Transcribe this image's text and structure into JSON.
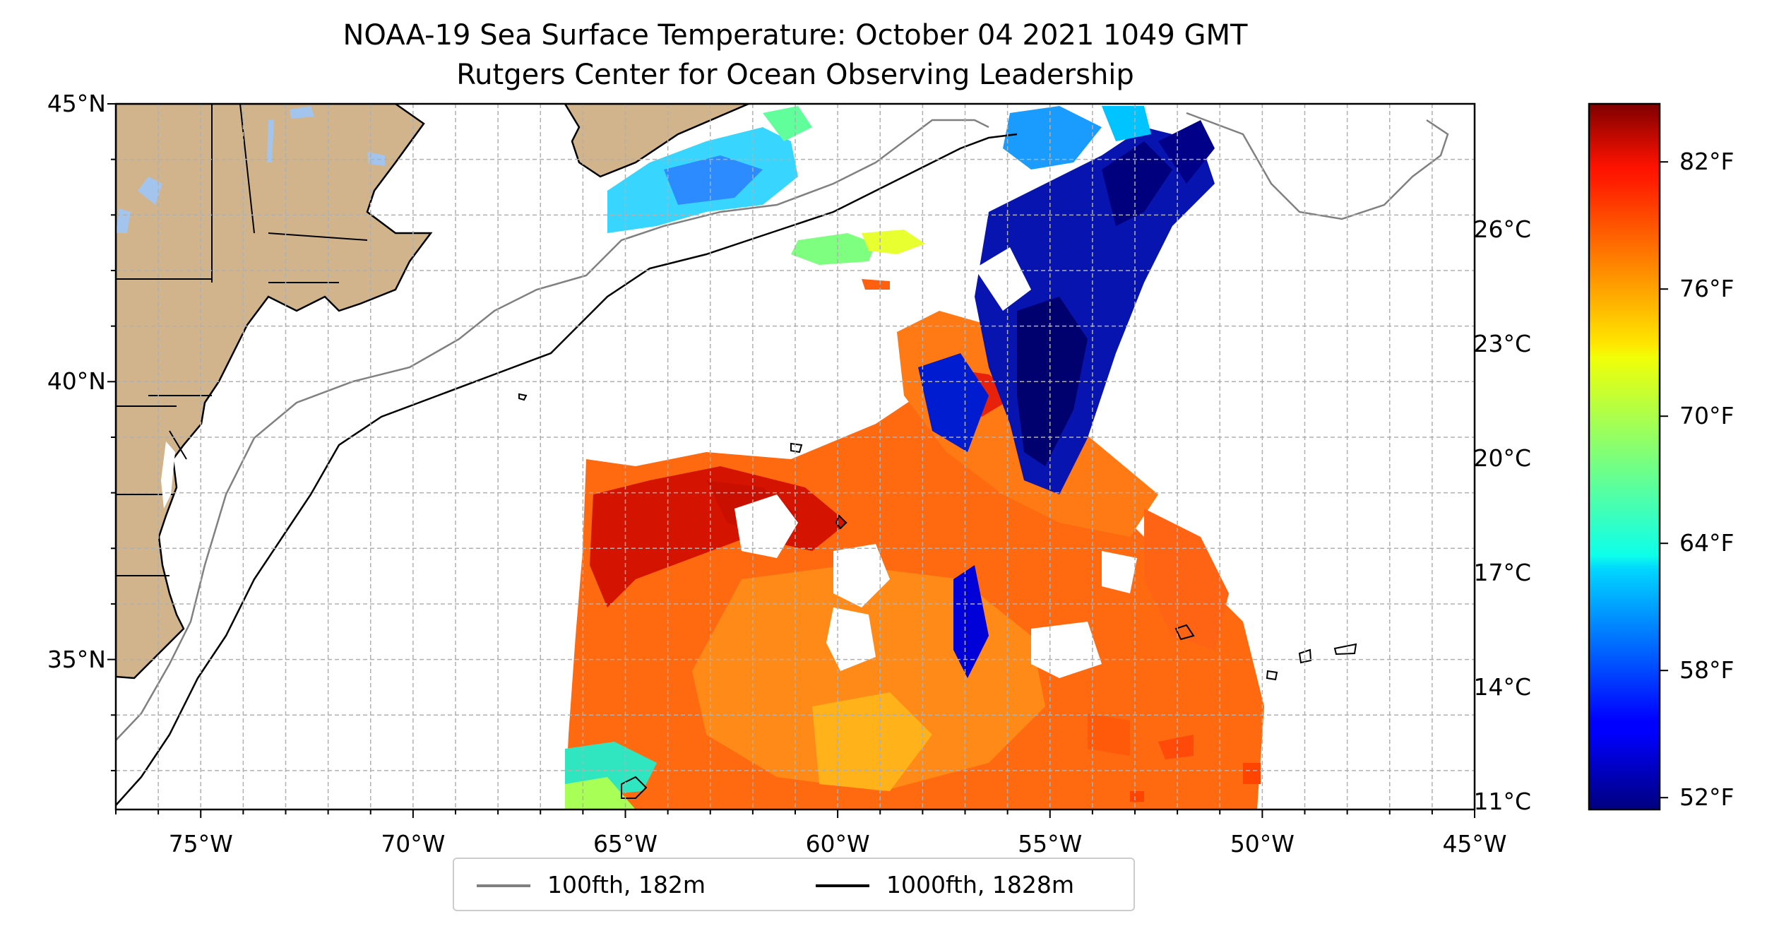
{
  "title": "NOAA-19 Sea Surface Temperature: October 04 2021 1049 GMT",
  "subtitle": "Rutgers Center for Ocean Observing Leadership",
  "map": {
    "lon_range": [
      -77,
      -45
    ],
    "lat_range": [
      32.3,
      45
    ],
    "lat_ticks": [
      {
        "value": 45,
        "label": "45°N"
      },
      {
        "value": 40,
        "label": "40°N"
      },
      {
        "value": 35,
        "label": "35°N"
      }
    ],
    "lon_ticks": [
      {
        "value": -75,
        "label": "75°W"
      },
      {
        "value": -70,
        "label": "70°W"
      },
      {
        "value": -65,
        "label": "65°W"
      },
      {
        "value": -60,
        "label": "60°W"
      },
      {
        "value": -55,
        "label": "55°W"
      },
      {
        "value": -50,
        "label": "50°W"
      },
      {
        "value": -45,
        "label": "45°W"
      }
    ],
    "land_color": "#d2b48c",
    "lake_color": "#a3c4ec",
    "gridlines": "dashed"
  },
  "legend": {
    "items": [
      {
        "label": "100fth, 182m",
        "color": "#808080"
      },
      {
        "label": "1000fth, 1828m",
        "color": "#000000"
      }
    ],
    "placement": "bottom-center"
  },
  "colorbar": {
    "colormap": "jet",
    "range_c": [
      10.8,
      29.3
    ],
    "celsius_ticks": [
      {
        "value": 11,
        "label": "11°C"
      },
      {
        "value": 14,
        "label": "14°C"
      },
      {
        "value": 17,
        "label": "17°C"
      },
      {
        "value": 20,
        "label": "20°C"
      },
      {
        "value": 23,
        "label": "23°C"
      },
      {
        "value": 26,
        "label": "26°C"
      }
    ],
    "fahrenheit_ticks": [
      {
        "value": 52,
        "label": "52°F"
      },
      {
        "value": 58,
        "label": "58°F"
      },
      {
        "value": 64,
        "label": "64°F"
      },
      {
        "value": 70,
        "label": "70°F"
      },
      {
        "value": 76,
        "label": "76°F"
      },
      {
        "value": 82,
        "label": "82°F"
      }
    ]
  }
}
